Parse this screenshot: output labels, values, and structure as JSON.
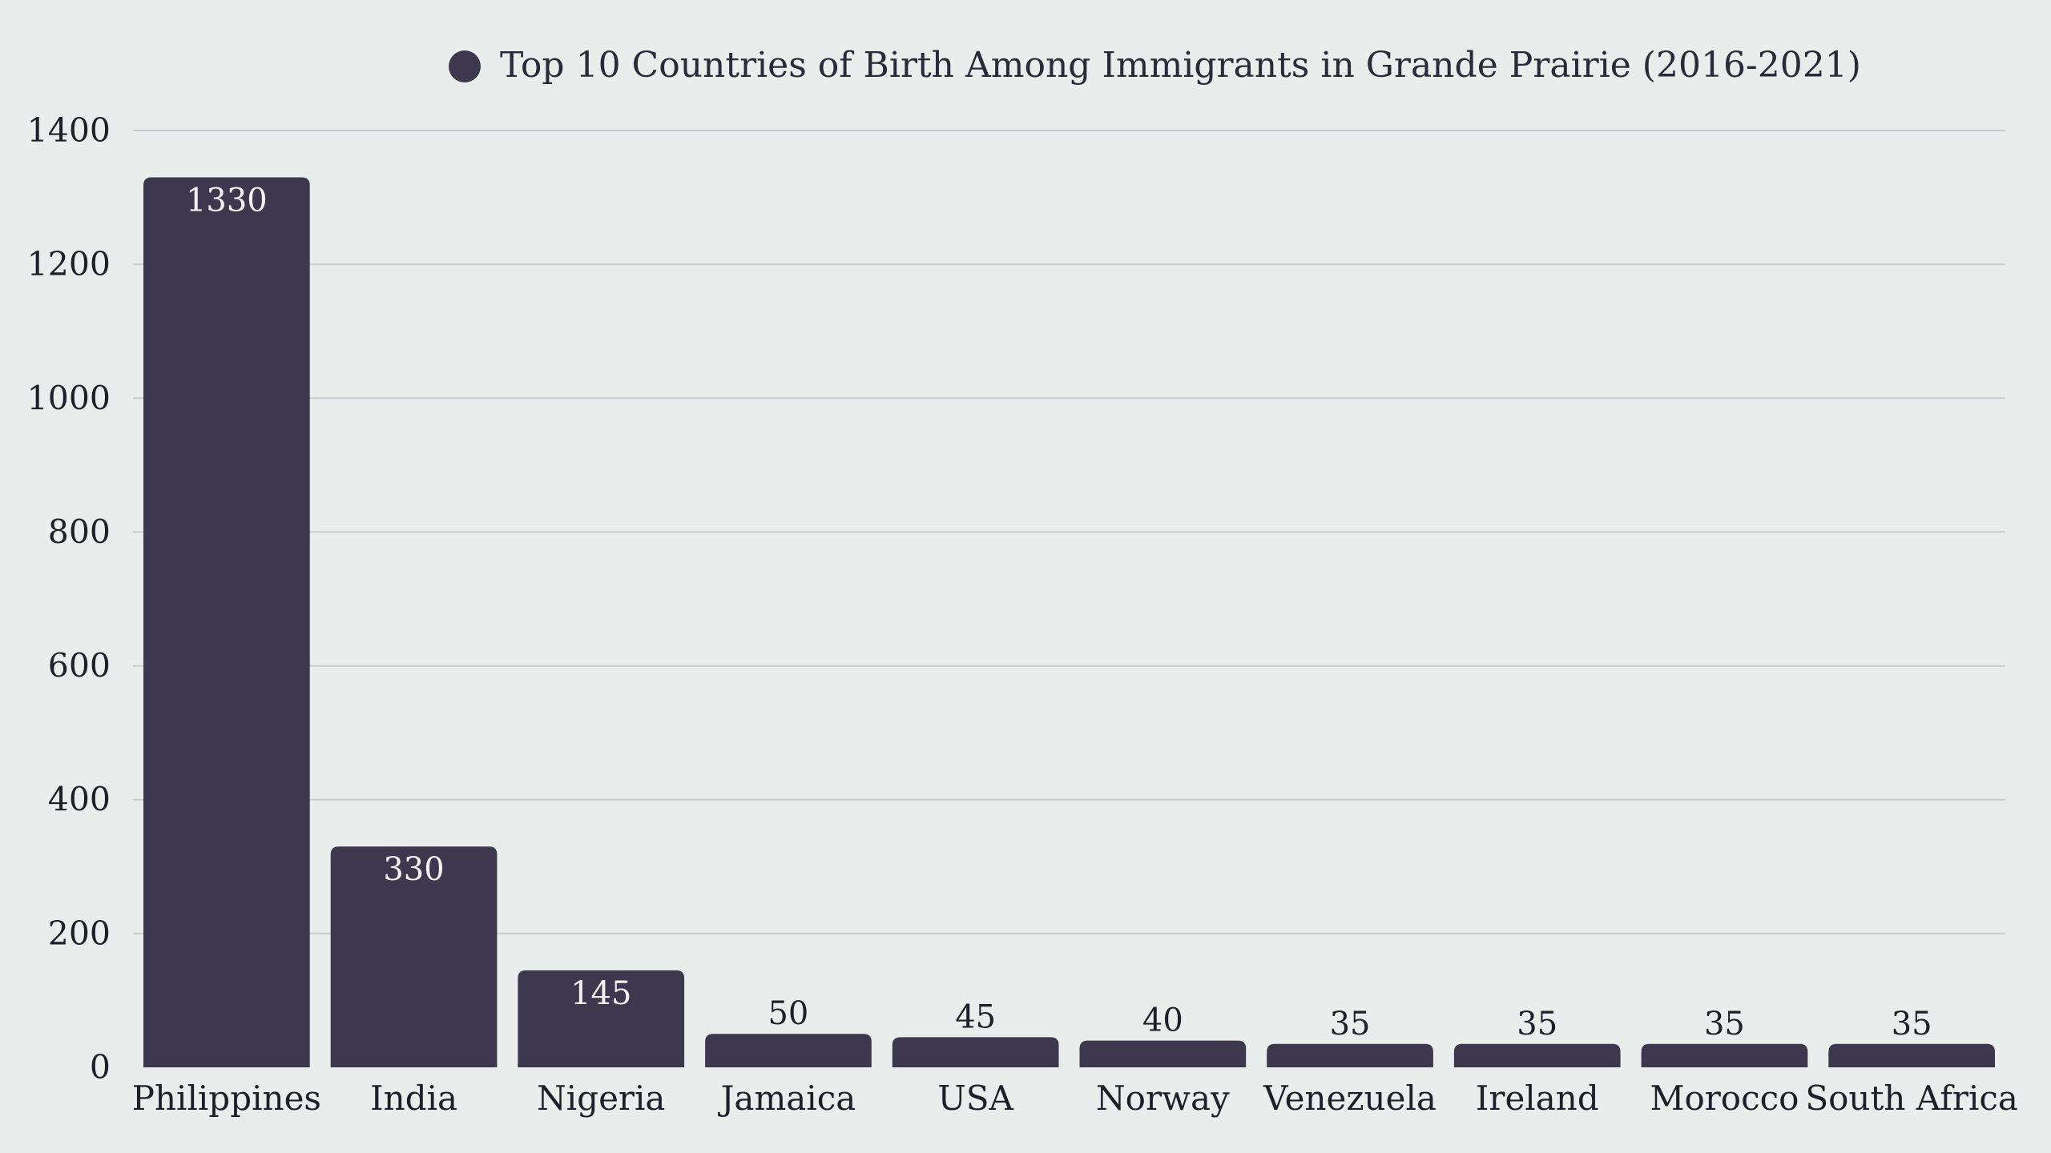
{
  "chart_data": {
    "type": "bar",
    "title": "",
    "xlabel": "",
    "ylabel": "",
    "legend": {
      "placement": "top-center",
      "entries": [
        "Top 10 Countries of Birth Among Immigrants in Grande Prairie (2016-2021)"
      ]
    },
    "categories": [
      "Philippines",
      "India",
      "Nigeria",
      "Jamaica",
      "USA",
      "Norway",
      "Venezuela",
      "Ireland",
      "Morocco",
      "South Africa"
    ],
    "series": [
      {
        "name": "Top 10 Countries of Birth Among Immigrants in Grande Prairie (2016-2021)",
        "values": [
          1330,
          330,
          145,
          50,
          45,
          40,
          35,
          35,
          35,
          35
        ],
        "color": "#3d384d"
      }
    ],
    "ylim": [
      0,
      1400
    ],
    "yticks": [
      0,
      200,
      400,
      600,
      800,
      1000,
      1200,
      1400
    ],
    "grid": true,
    "data_labels": true
  },
  "colors": {
    "background": "#e9edec",
    "bar": "#3d384d",
    "grid": "#c9cdcf"
  }
}
